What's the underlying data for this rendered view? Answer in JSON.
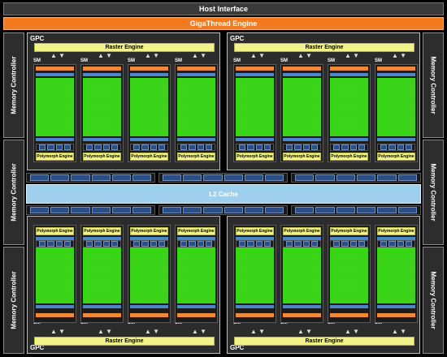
{
  "host_interface": "Host Interface",
  "gigathread_engine": "GigaThread Engine",
  "memory_controller": "Memory Controller",
  "l2_cache": "L2 Cache",
  "gpc_label": "GPC",
  "raster_engine": "Raster Engine",
  "polymorph_engine": "Polymorph Engine",
  "sm_label": "SM",
  "colors": {
    "background": "#000000",
    "host_bar": "#3a3a3a",
    "gigathread": "#f47a20",
    "raster": "#f2f28a",
    "core_green": "#3ad418",
    "l2": "#9ed0ee",
    "memory_controller": "#2d2d2d",
    "cache_blue": "#4a86c8"
  }
}
